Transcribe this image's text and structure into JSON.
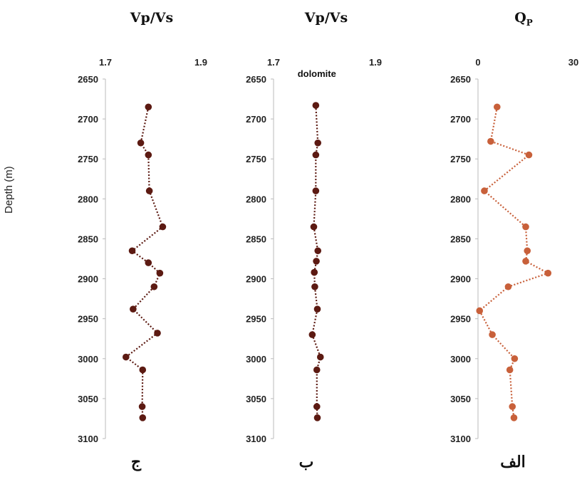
{
  "ylabel": "Depth (m)",
  "colors": {
    "dark": "#5c1a12",
    "light": "#c8603a",
    "axis": "#bbbbbb"
  },
  "chart_data": [
    {
      "type": "scatter",
      "panel": "ج",
      "title": "Vp/Vs",
      "xlim": [
        1.7,
        1.9
      ],
      "xticks": [
        "1.7",
        "1.9"
      ],
      "ylim": [
        2650,
        3100
      ],
      "yticks": [
        "2650",
        "2700",
        "2750",
        "2800",
        "2850",
        "2900",
        "2950",
        "3000",
        "3050",
        "3100"
      ],
      "color": "#5c1a12",
      "x": [
        1.79,
        1.774,
        1.79,
        1.792,
        1.82,
        1.756,
        1.79,
        1.814,
        1.802,
        1.758,
        1.809,
        1.743,
        1.778,
        1.777,
        1.778
      ],
      "y": [
        2685,
        2730,
        2745,
        2790,
        2835,
        2865,
        2880,
        2893,
        2910,
        2938,
        2968,
        2998,
        3014,
        3060,
        3074
      ]
    },
    {
      "type": "scatter",
      "panel": "ب",
      "title": "Vp/Vs",
      "xlim": [
        1.7,
        1.9
      ],
      "xticks": [
        "1.7",
        "1.9"
      ],
      "ylim": [
        2650,
        3100
      ],
      "yticks": [
        "2650",
        "2700",
        "2750",
        "2800",
        "2850",
        "2900",
        "2950",
        "3000",
        "3050",
        "3100"
      ],
      "annotation": "dolomite",
      "color": "#5c1a12",
      "x": [
        1.783,
        1.787,
        1.783,
        1.783,
        1.779,
        1.787,
        1.784,
        1.78,
        1.781,
        1.786,
        1.776,
        1.792,
        1.785,
        1.785,
        1.786
      ],
      "y": [
        2683,
        2730,
        2745,
        2790,
        2835,
        2865,
        2878,
        2892,
        2910,
        2938,
        2970,
        2998,
        3014,
        3060,
        3074
      ]
    },
    {
      "type": "scatter",
      "panel": "الف",
      "title": "Q",
      "title_sub": "P",
      "xlim": [
        0,
        30
      ],
      "xticks": [
        "0",
        "30"
      ],
      "ylim": [
        2650,
        3100
      ],
      "yticks": [
        "2650",
        "2700",
        "2750",
        "2800",
        "2850",
        "2900",
        "2950",
        "3000",
        "3050",
        "3100"
      ],
      "color": "#c8603a",
      "x": [
        6,
        4,
        16,
        2,
        15,
        15.5,
        15,
        22,
        9.5,
        0.5,
        4.5,
        11.5,
        10,
        10.8,
        11.3
      ],
      "y": [
        2685,
        2728,
        2745,
        2790,
        2835,
        2865,
        2878,
        2893,
        2910,
        2940,
        2970,
        3000,
        3014,
        3060,
        3074
      ]
    }
  ]
}
